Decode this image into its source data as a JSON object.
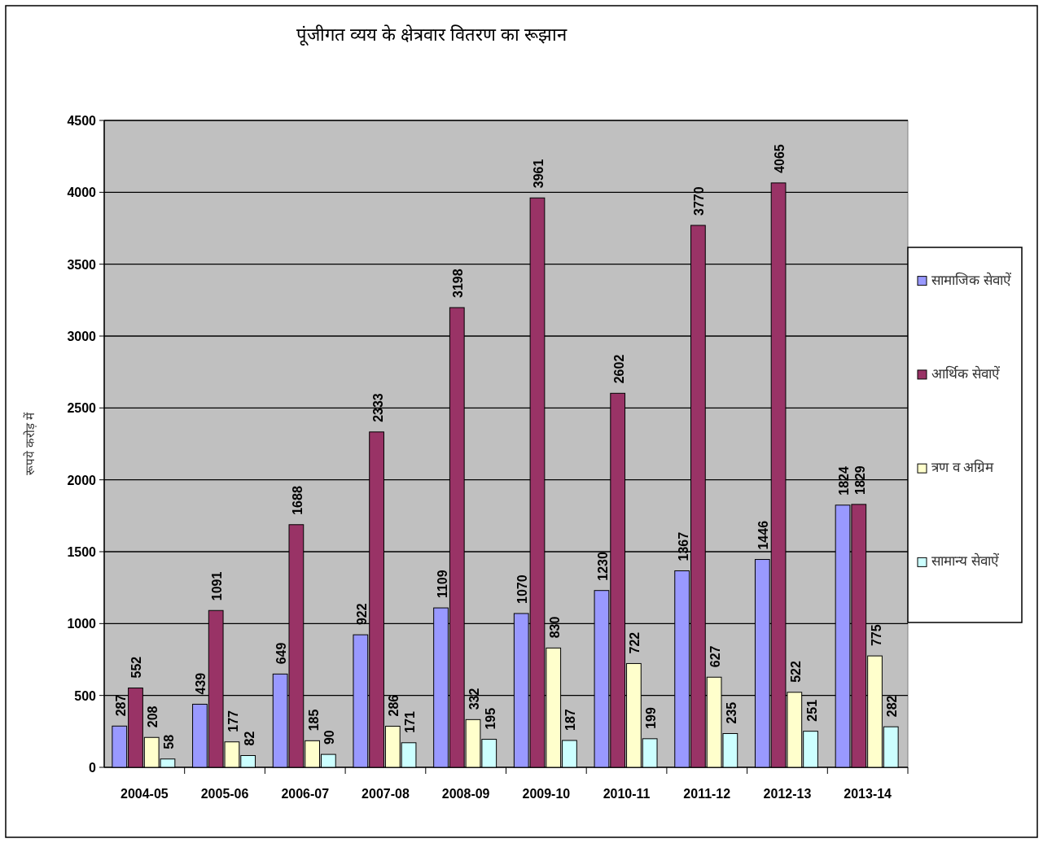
{
  "chart_data": {
    "type": "bar",
    "title": "पूंजीगत व्यय के क्षेत्रवार वितरण का रूझान",
    "ylabel": "रूपये करोड़ में",
    "categories": [
      "2004-05",
      "2005-06",
      "2006-07",
      "2007-08",
      "2008-09",
      "2009-10",
      "2010-11",
      "2011-12",
      "2012-13",
      "2013-14"
    ],
    "series": [
      {
        "name": "सामाजिक सेवाऐं",
        "color": "#9999ff",
        "values": [
          287,
          439,
          649,
          922,
          1109,
          1070,
          1230,
          1367,
          1446,
          1824
        ]
      },
      {
        "name": "आर्थिक सेवाऐं",
        "color": "#993366",
        "values": [
          552,
          1091,
          1688,
          2333,
          3198,
          3961,
          2602,
          3770,
          4065,
          1829
        ]
      },
      {
        "name": "त्रण व अग्रिम",
        "color": "#ffffcc",
        "values": [
          208,
          177,
          185,
          286,
          332,
          830,
          722,
          627,
          522,
          775
        ]
      },
      {
        "name": "सामान्य सेवाऐं",
        "color": "#ccffff",
        "values": [
          58,
          82,
          90,
          171,
          195,
          187,
          199,
          235,
          251,
          282
        ]
      }
    ],
    "ylim": [
      0,
      4500
    ],
    "yticks": [
      0,
      500,
      1000,
      1500,
      2000,
      2500,
      3000,
      3500,
      4000,
      4500
    ],
    "grid": "y",
    "legend": "right",
    "data_labels": true
  }
}
